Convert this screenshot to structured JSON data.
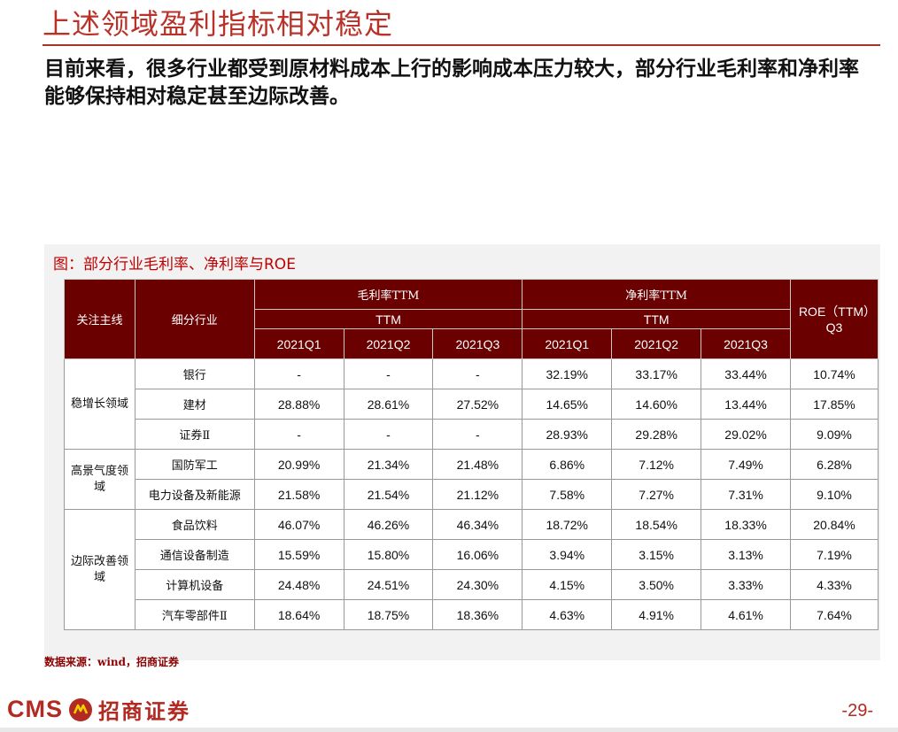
{
  "slide": {
    "title": "上述领域盈利指标相对稳定",
    "lead": "目前来看，很多行业都受到原材料成本上行的影响成本压力较大，部分行业毛利率和净利率能够保持相对稳定甚至边际改善。"
  },
  "figure": {
    "caption": "图：部分行业毛利率、净利率与ROE",
    "header": {
      "col_focus": "关注主线",
      "col_industry": "细分行业",
      "gross_margin": "毛利率TTM",
      "net_margin": "净利率TTM",
      "ttm": "TTM",
      "roe": "ROE（TTM）Q3",
      "quarters": [
        "2021Q1",
        "2021Q2",
        "2021Q3"
      ]
    },
    "groups": [
      {
        "sector": "稳增长领域",
        "rows": [
          {
            "industry": "银行",
            "gross": [
              "-",
              "-",
              "-"
            ],
            "net": [
              "32.19%",
              "33.17%",
              "33.44%"
            ],
            "roe": "10.74%"
          },
          {
            "industry": "建材",
            "gross": [
              "28.88%",
              "28.61%",
              "27.52%"
            ],
            "net": [
              "14.65%",
              "14.60%",
              "13.44%"
            ],
            "roe": "17.85%"
          },
          {
            "industry": "证券Ⅱ",
            "gross": [
              "-",
              "-",
              "-"
            ],
            "net": [
              "28.93%",
              "29.28%",
              "29.02%"
            ],
            "roe": "9.09%"
          }
        ]
      },
      {
        "sector": "高景气度领域",
        "rows": [
          {
            "industry": "国防军工",
            "gross": [
              "20.99%",
              "21.34%",
              "21.48%"
            ],
            "net": [
              "6.86%",
              "7.12%",
              "7.49%"
            ],
            "roe": "6.28%"
          },
          {
            "industry": "电力设备及新能源",
            "gross": [
              "21.58%",
              "21.54%",
              "21.12%"
            ],
            "net": [
              "7.58%",
              "7.27%",
              "7.31%"
            ],
            "roe": "9.10%"
          }
        ]
      },
      {
        "sector": "边际改善领域",
        "rows": [
          {
            "industry": "食品饮料",
            "gross": [
              "46.07%",
              "46.26%",
              "46.34%"
            ],
            "net": [
              "18.72%",
              "18.54%",
              "18.33%"
            ],
            "roe": "20.84%"
          },
          {
            "industry": "通信设备制造",
            "gross": [
              "15.59%",
              "15.80%",
              "16.06%"
            ],
            "net": [
              "3.94%",
              "3.15%",
              "3.13%"
            ],
            "roe": "7.19%"
          },
          {
            "industry": "计算机设备",
            "gross": [
              "24.48%",
              "24.51%",
              "24.30%"
            ],
            "net": [
              "4.15%",
              "3.50%",
              "3.33%"
            ],
            "roe": "4.33%"
          },
          {
            "industry": "汽车零部件Ⅱ",
            "gross": [
              "18.64%",
              "18.75%",
              "18.36%"
            ],
            "net": [
              "4.63%",
              "4.91%",
              "4.61%"
            ],
            "roe": "7.64%"
          }
        ]
      }
    ],
    "source": "数据来源：wind，招商证券"
  },
  "footer": {
    "logo_latin": "CMS",
    "logo_cn": "招商证券",
    "logo_mark_icon": "cms-seal-icon",
    "page": "-29-"
  },
  "colors": {
    "title_red": "#b8322a",
    "header_bg": "#6b0000",
    "brand_red": "#b22a22"
  }
}
